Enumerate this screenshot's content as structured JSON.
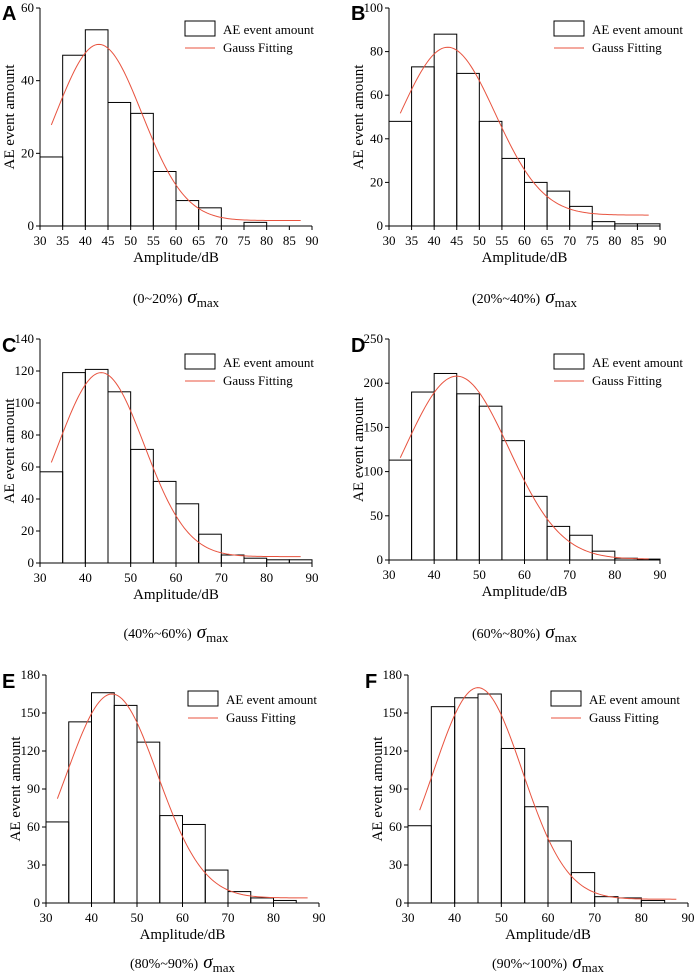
{
  "figure": {
    "colors": {
      "bars": "#000000",
      "fit": "#e8533f",
      "axes": "#000000"
    }
  },
  "chart_data": [
    {
      "panel": "A",
      "type": "bar",
      "caption_prefix": "(0~20%)",
      "caption_sigma": "σ",
      "caption_sub": "max",
      "xlabel": "Amplitude/dB",
      "ylabel": "AE  event amount",
      "xlim": [
        30,
        90
      ],
      "ylim": [
        0,
        60
      ],
      "xticks": [
        30,
        35,
        40,
        45,
        50,
        55,
        60,
        65,
        70,
        75,
        80,
        85,
        90
      ],
      "yticks": [
        0,
        20,
        40,
        60
      ],
      "bin_starts": [
        30,
        35,
        40,
        45,
        50,
        55,
        60,
        65,
        70,
        75,
        80,
        85
      ],
      "values": [
        19,
        47,
        54,
        34,
        31,
        15,
        7,
        5,
        0,
        1,
        0,
        0
      ],
      "legend": [
        "AE event amount",
        "Gauss Fitting"
      ],
      "fit": {
        "peak": 50,
        "center": 43,
        "sigma": 9.5,
        "baseline": 1.5,
        "x_start": 32.5,
        "x_end": 87.5
      }
    },
    {
      "panel": "B",
      "type": "bar",
      "caption_prefix": "(20%~40%)",
      "caption_sigma": "σ",
      "caption_sub": "max",
      "xlabel": "Amplitude/dB",
      "ylabel": "AE  event amount",
      "xlim": [
        30,
        90
      ],
      "ylim": [
        0,
        100
      ],
      "xticks": [
        30,
        35,
        40,
        45,
        50,
        55,
        60,
        65,
        70,
        75,
        80,
        85,
        90
      ],
      "yticks": [
        0,
        20,
        40,
        60,
        80,
        100
      ],
      "bin_starts": [
        30,
        35,
        40,
        45,
        50,
        55,
        60,
        65,
        70,
        75,
        80,
        85
      ],
      "values": [
        48,
        73,
        88,
        70,
        48,
        31,
        20,
        16,
        9,
        2,
        1,
        1
      ],
      "legend": [
        "AE event amount",
        "Gauss Fitting"
      ],
      "fit": {
        "peak": 82,
        "center": 43,
        "sigma": 10.5,
        "baseline": 5,
        "x_start": 32.5,
        "x_end": 87.5
      }
    },
    {
      "panel": "C",
      "type": "bar",
      "caption_prefix": "(40%~60%)",
      "caption_sigma": "σ",
      "caption_sub": "max",
      "xlabel": "Amplitude/dB",
      "ylabel": "AE  event amount",
      "xlim": [
        30,
        90
      ],
      "ylim": [
        0,
        140
      ],
      "xticks": [
        30,
        40,
        50,
        60,
        70,
        80,
        90
      ],
      "yticks": [
        0,
        20,
        40,
        60,
        80,
        100,
        120,
        140
      ],
      "bin_starts": [
        30,
        35,
        40,
        45,
        50,
        55,
        60,
        65,
        70,
        75,
        80,
        85
      ],
      "values": [
        57,
        119,
        121,
        107,
        71,
        51,
        37,
        18,
        5,
        3,
        2,
        2
      ],
      "legend": [
        "AE event amount",
        "Gauss Fitting"
      ],
      "fit": {
        "peak": 119,
        "center": 43.5,
        "sigma": 9.5,
        "baseline": 4,
        "x_start": 32.5,
        "x_end": 87.5
      }
    },
    {
      "panel": "D",
      "type": "bar",
      "caption_prefix": "(60%~80%)",
      "caption_sigma": "σ",
      "caption_sub": "max",
      "xlabel": "Amplitude/dB",
      "ylabel": "AE  event amount",
      "xlim": [
        30,
        90
      ],
      "ylim": [
        0,
        250
      ],
      "xticks": [
        30,
        40,
        50,
        60,
        70,
        80,
        90
      ],
      "yticks": [
        0,
        50,
        100,
        150,
        200,
        250
      ],
      "bin_starts": [
        30,
        35,
        40,
        45,
        50,
        55,
        60,
        65,
        70,
        75,
        80,
        85
      ],
      "values": [
        113,
        190,
        211,
        188,
        174,
        135,
        72,
        38,
        28,
        10,
        2,
        1
      ],
      "legend": [
        "AE event amount",
        "Gauss Fitting"
      ],
      "fit": {
        "peak": 208,
        "center": 45,
        "sigma": 11.5,
        "baseline": 1,
        "x_start": 32.5,
        "x_end": 87.5
      }
    },
    {
      "panel": "E",
      "type": "bar",
      "caption_prefix": "(80%~90%)",
      "caption_sigma": "σ",
      "caption_sub": "max",
      "xlabel": "Amplitude/dB",
      "ylabel": "AE  event amount",
      "xlim": [
        30,
        90
      ],
      "ylim": [
        0,
        180
      ],
      "xticks": [
        30,
        40,
        50,
        60,
        70,
        80,
        90
      ],
      "yticks": [
        0,
        30,
        60,
        90,
        120,
        150,
        180
      ],
      "bin_starts": [
        30,
        35,
        40,
        45,
        50,
        55,
        60,
        65,
        70,
        75,
        80,
        85
      ],
      "values": [
        64,
        143,
        166,
        156,
        127,
        69,
        62,
        26,
        9,
        4,
        2,
        0
      ],
      "legend": [
        "AE event amount",
        "Gauss Fitting"
      ],
      "fit": {
        "peak": 165,
        "center": 44.5,
        "sigma": 10,
        "baseline": 4,
        "x_start": 32.5,
        "x_end": 87.5
      }
    },
    {
      "panel": "F",
      "type": "bar",
      "caption_prefix": "(90%~100%)",
      "caption_sigma": "σ",
      "caption_sub": "max",
      "xlabel": "Amplitude/dB",
      "ylabel": "AE  event amount",
      "xlim": [
        30,
        90
      ],
      "ylim": [
        0,
        180
      ],
      "xticks": [
        30,
        40,
        50,
        60,
        70,
        80,
        90
      ],
      "yticks": [
        0,
        30,
        60,
        90,
        120,
        150,
        180
      ],
      "bin_starts": [
        30,
        35,
        40,
        45,
        50,
        55,
        60,
        65,
        70,
        75,
        80,
        85
      ],
      "values": [
        61,
        155,
        162,
        165,
        122,
        76,
        49,
        24,
        5,
        4,
        2,
        0
      ],
      "legend": [
        "AE event amount",
        "Gauss Fitting"
      ],
      "fit": {
        "peak": 170,
        "center": 45,
        "sigma": 9.5,
        "baseline": 3,
        "x_start": 32.5,
        "x_end": 87.5
      }
    }
  ]
}
